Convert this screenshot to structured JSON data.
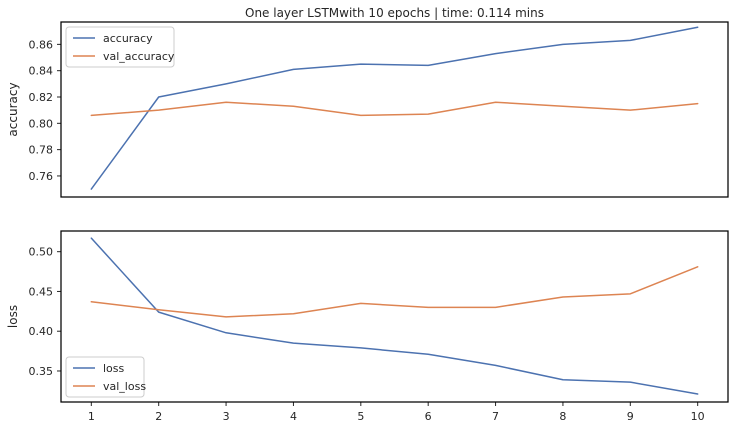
{
  "chart_data": [
    {
      "type": "line",
      "title": "One layer LSTMwith 10 epochs | time: 0.114 mins",
      "xlabel": "",
      "ylabel": "accuracy",
      "x": [
        1,
        2,
        3,
        4,
        5,
        6,
        7,
        8,
        9,
        10
      ],
      "xlim": [
        0.55,
        10.45
      ],
      "ylim": [
        0.744,
        0.877
      ],
      "yticks": [
        0.76,
        0.78,
        0.8,
        0.82,
        0.84,
        0.86
      ],
      "ytick_labels": [
        "0.76",
        "0.78",
        "0.80",
        "0.82",
        "0.84",
        "0.86"
      ],
      "show_xticks": false,
      "grid": false,
      "legend_position": "upper-left",
      "series": [
        {
          "name": "accuracy",
          "color": "#4c72b0",
          "values": [
            0.75,
            0.82,
            0.83,
            0.841,
            0.845,
            0.844,
            0.853,
            0.86,
            0.863,
            0.873
          ]
        },
        {
          "name": "val_accuracy",
          "color": "#dd8452",
          "values": [
            0.806,
            0.81,
            0.816,
            0.813,
            0.806,
            0.807,
            0.816,
            0.813,
            0.81,
            0.815
          ]
        }
      ]
    },
    {
      "type": "line",
      "title": "",
      "xlabel": "",
      "ylabel": "loss",
      "x": [
        1,
        2,
        3,
        4,
        5,
        6,
        7,
        8,
        9,
        10
      ],
      "xlim": [
        0.55,
        10.45
      ],
      "ylim": [
        0.311,
        0.526
      ],
      "xticks": [
        1,
        2,
        3,
        4,
        5,
        6,
        7,
        8,
        9,
        10
      ],
      "xtick_labels": [
        "1",
        "2",
        "3",
        "4",
        "5",
        "6",
        "7",
        "8",
        "9",
        "10"
      ],
      "yticks": [
        0.35,
        0.4,
        0.45,
        0.5
      ],
      "ytick_labels": [
        "0.35",
        "0.40",
        "0.45",
        "0.50"
      ],
      "show_xticks": true,
      "grid": false,
      "legend_position": "lower-left",
      "series": [
        {
          "name": "loss",
          "color": "#4c72b0",
          "values": [
            0.517,
            0.424,
            0.398,
            0.385,
            0.379,
            0.371,
            0.357,
            0.339,
            0.336,
            0.321
          ]
        },
        {
          "name": "val_loss",
          "color": "#dd8452",
          "values": [
            0.437,
            0.427,
            0.418,
            0.422,
            0.435,
            0.43,
            0.43,
            0.443,
            0.447,
            0.481
          ]
        }
      ]
    }
  ]
}
